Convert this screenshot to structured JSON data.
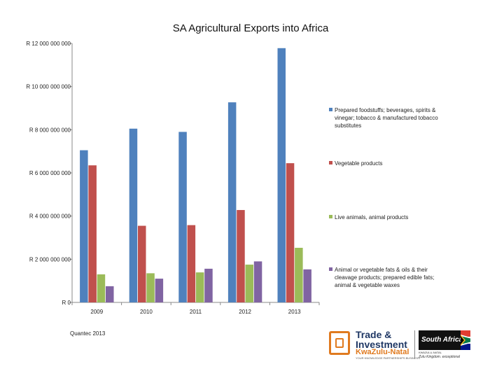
{
  "chart_data": {
    "type": "bar",
    "title": "SA Agricultural Exports into Africa",
    "categories": [
      "2009",
      "2010",
      "2011",
      "2012",
      "2013"
    ],
    "series": [
      {
        "name": "Prepared foodstuffs; beverages, spirits & vinegar; tobacco & manufactured tobacco substitutes",
        "legend_lines": [
          "Prepared foodstuffs; beverages, spirits &",
          "vinegar; tobacco & manufactured tobacco",
          "substitutes"
        ],
        "color": "#4F81BD",
        "values": [
          7050000000,
          8050000000,
          7900000000,
          9270000000,
          11780000000
        ]
      },
      {
        "name": "Vegetable products",
        "legend_lines": [
          "Vegetable products"
        ],
        "color": "#C0504D",
        "values": [
          6350000000,
          3550000000,
          3580000000,
          4280000000,
          6450000000
        ]
      },
      {
        "name": "Live animals, animal products",
        "legend_lines": [
          "Live animals, animal products"
        ],
        "color": "#9BBB59",
        "values": [
          1300000000,
          1350000000,
          1390000000,
          1750000000,
          2530000000
        ]
      },
      {
        "name": "Animal or vegetable fats & oils & their cleavage products; prepared edible fats; animal & vegetable waxes",
        "legend_lines": [
          "Animal or vegetable fats & oils & their",
          "cleavage products; prepared edible fats;",
          "animal & vegetable waxes"
        ],
        "color": "#8064A2",
        "values": [
          750000000,
          1100000000,
          1560000000,
          1900000000,
          1530000000
        ]
      }
    ],
    "ylim": [
      0,
      12000000000
    ],
    "yticks": [
      0,
      2000000000,
      4000000000,
      6000000000,
      8000000000,
      10000000000,
      12000000000
    ],
    "ytick_labels": [
      "R 0",
      "R 2 000 000 000",
      "R 4 000 000 000",
      "R 6 000 000 000",
      "R 8 000 000 000",
      "R 10 000 000 000",
      "R 12 000 000 000"
    ],
    "xlabel": "",
    "ylabel": "",
    "grid": false,
    "legend_position": "right"
  },
  "source_note": "Quantec 2013",
  "logos": {
    "tik": {
      "line1": "Trade &",
      "line2": "Investment",
      "line3": "KwaZulu-Natal",
      "tagline": "YOUR KNOWLEDGE PARTNERSHIPS BUSINESS"
    },
    "sa": {
      "wordmark": "South Africa",
      "subline": "KWAZULU-NATAL",
      "tagline": "Zulu Kingdom. exceptional"
    },
    "flag_colors": {
      "red": "#E03C31",
      "blue": "#001489",
      "green": "#007749",
      "yellow": "#FFB81C",
      "black": "#000000",
      "white": "#FFFFFF"
    }
  }
}
